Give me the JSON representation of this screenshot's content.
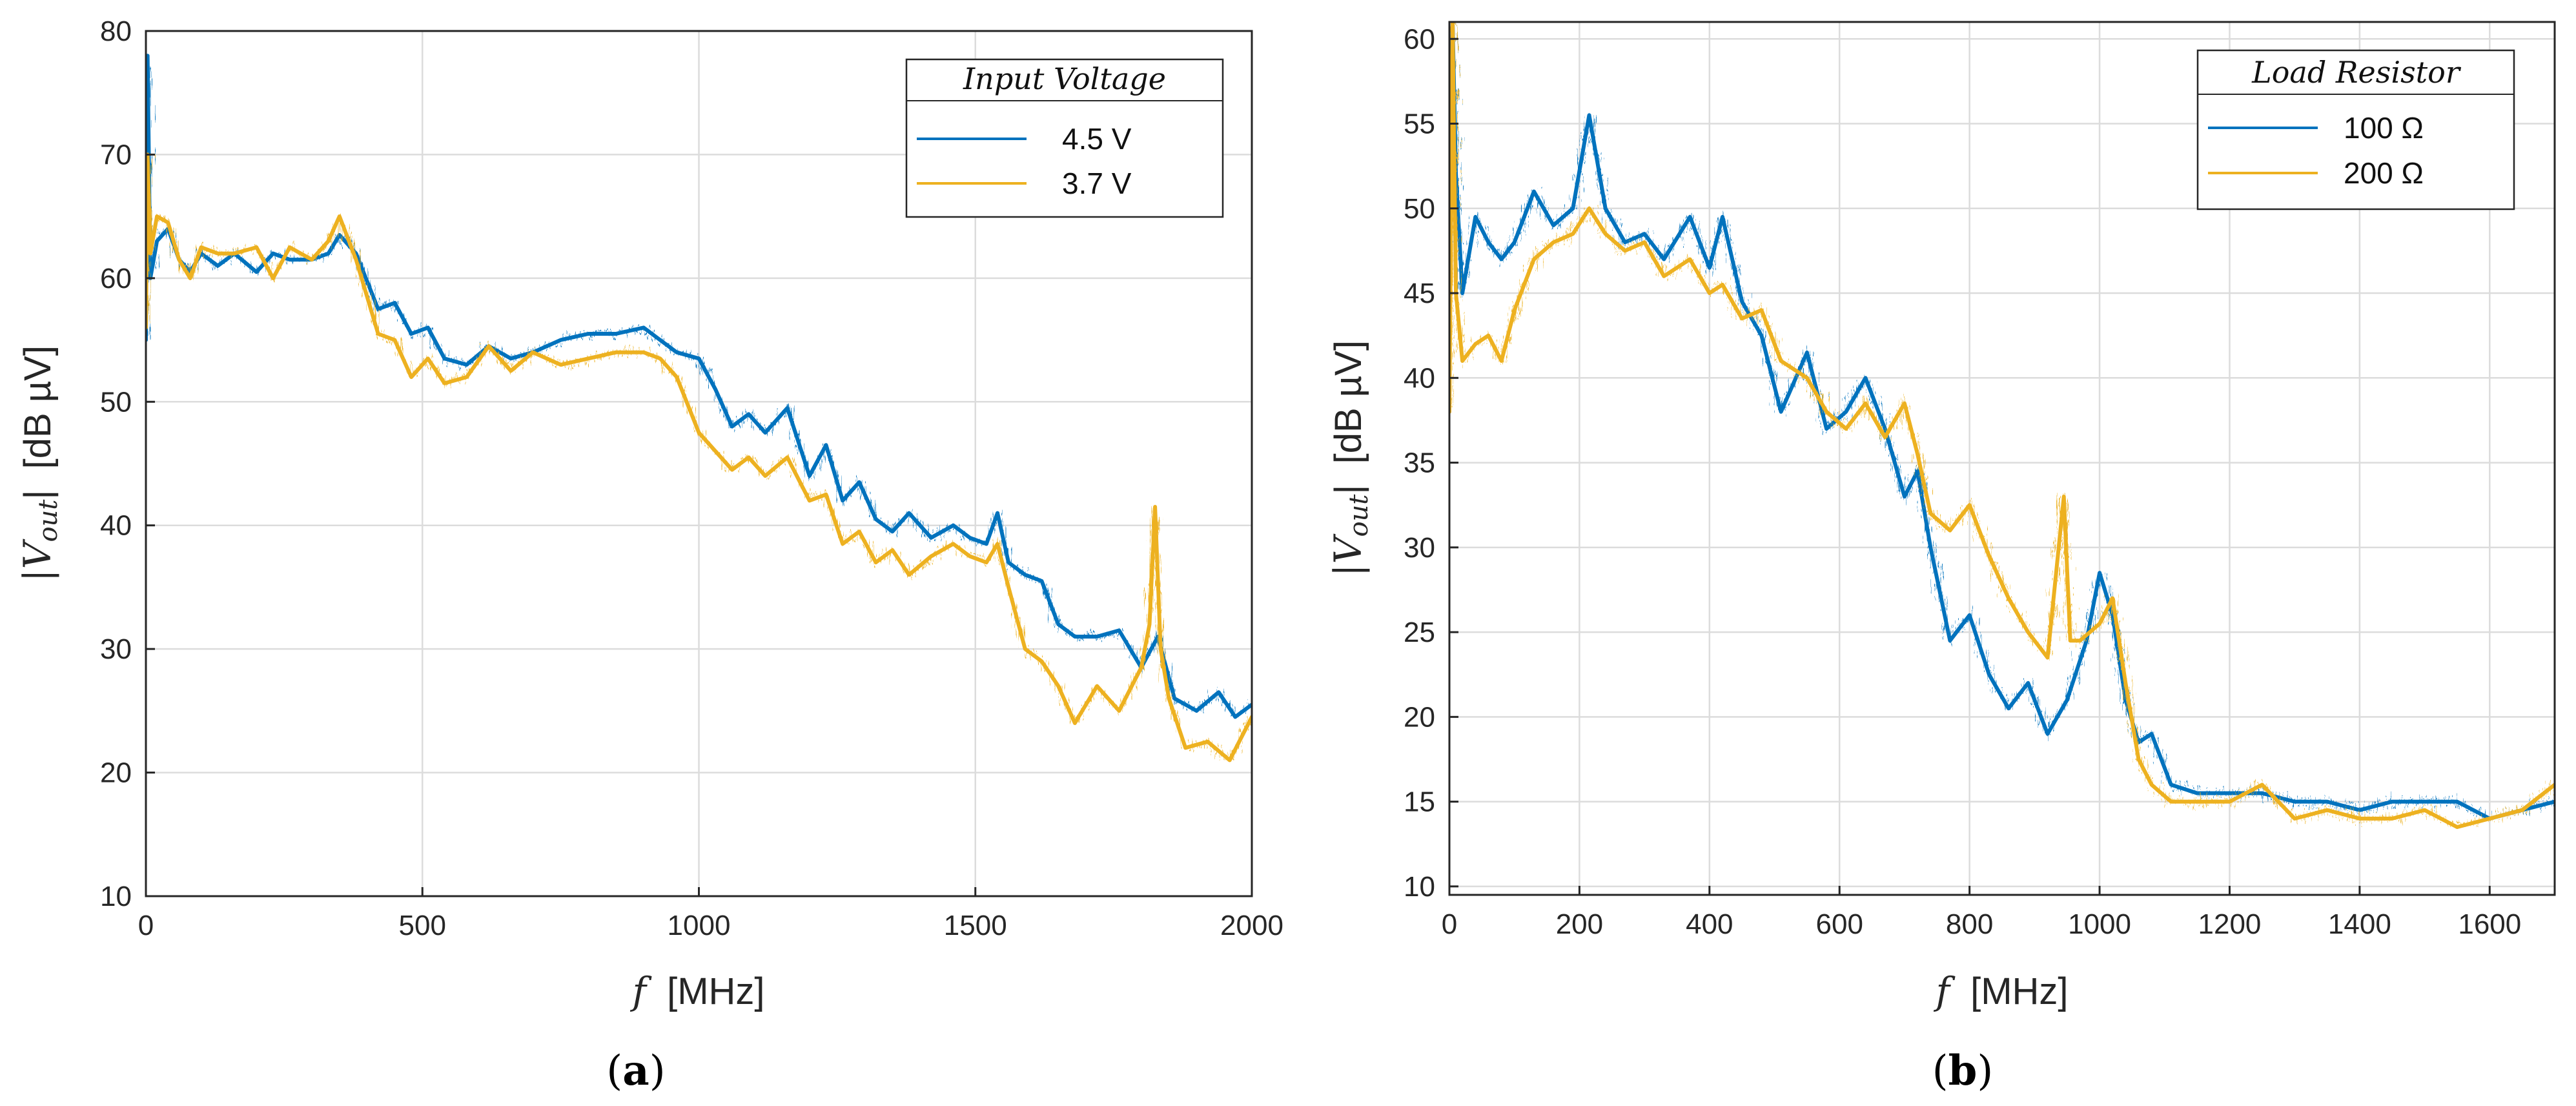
{
  "colors": {
    "blue": "#0072BD",
    "yellow": "#EDB120",
    "grid": "#dcdcdc",
    "axis": "#262626"
  },
  "chart_data": [
    {
      "type": "line",
      "caption_letter": "a",
      "title": "",
      "xlabel_var": "f",
      "xlabel_unit": "[MHz]",
      "ylabel_var": "|V",
      "ylabel_sub": "out",
      "ylabel_close": "|",
      "ylabel_unit": "[dB µV]",
      "xlim": [
        0,
        2000
      ],
      "ylim": [
        10,
        80
      ],
      "xticks": [
        0,
        500,
        1000,
        1500,
        2000
      ],
      "yticks": [
        10,
        20,
        30,
        40,
        50,
        60,
        70,
        80
      ],
      "grid": true,
      "legend_title": "Input Voltage",
      "legend_position": "top-right",
      "series": [
        {
          "name": "4.5 V",
          "color": "blue",
          "x": [
            0,
            3,
            8,
            20,
            40,
            60,
            80,
            100,
            130,
            160,
            200,
            230,
            260,
            300,
            330,
            350,
            380,
            420,
            450,
            480,
            510,
            540,
            580,
            620,
            660,
            700,
            750,
            800,
            850,
            900,
            930,
            960,
            1000,
            1030,
            1060,
            1090,
            1120,
            1160,
            1200,
            1230,
            1260,
            1290,
            1320,
            1350,
            1380,
            1420,
            1460,
            1490,
            1520,
            1540,
            1560,
            1590,
            1620,
            1650,
            1680,
            1720,
            1760,
            1800,
            1830,
            1860,
            1900,
            1940,
            1970,
            2000
          ],
          "values": [
            55,
            78,
            60,
            63,
            64,
            61.5,
            60.5,
            62,
            61,
            62,
            60.5,
            62,
            61.5,
            61.5,
            62,
            63.5,
            62,
            57.5,
            58,
            55.5,
            56,
            53.5,
            53,
            54.5,
            53.5,
            54,
            55,
            55.5,
            55.5,
            56,
            55,
            54,
            53.5,
            51,
            48,
            49,
            47.5,
            49.5,
            44,
            46.5,
            42,
            43.5,
            40.5,
            39.5,
            41,
            39,
            40,
            39,
            38.5,
            41,
            37,
            36,
            35.5,
            32,
            31,
            31,
            31.5,
            28.5,
            31,
            26,
            25,
            26.5,
            24.5,
            25.5
          ]
        },
        {
          "name": "3.7 V",
          "color": "yellow",
          "x": [
            0,
            3,
            8,
            20,
            40,
            60,
            80,
            100,
            130,
            160,
            200,
            230,
            260,
            300,
            330,
            350,
            380,
            420,
            450,
            480,
            510,
            540,
            580,
            620,
            660,
            700,
            750,
            800,
            850,
            900,
            930,
            960,
            1000,
            1030,
            1060,
            1090,
            1120,
            1160,
            1200,
            1230,
            1260,
            1290,
            1320,
            1350,
            1380,
            1420,
            1460,
            1490,
            1520,
            1540,
            1560,
            1590,
            1620,
            1650,
            1680,
            1720,
            1760,
            1800,
            1815,
            1825,
            1835,
            1850,
            1880,
            1920,
            1960,
            2000
          ],
          "values": [
            56,
            70,
            62,
            65,
            64.5,
            61.5,
            60,
            62.5,
            62,
            62,
            62.5,
            60,
            62.5,
            61.5,
            63,
            65,
            61.5,
            55.5,
            55,
            52,
            53.5,
            51.5,
            52,
            54.5,
            52.5,
            54,
            53,
            53.5,
            54,
            54,
            53.5,
            52,
            47.5,
            46,
            44.5,
            45.5,
            44,
            45.5,
            42,
            42.5,
            38.5,
            39.5,
            37,
            38,
            36,
            37.5,
            38.5,
            37.5,
            37,
            38.5,
            35,
            30,
            29,
            27,
            24,
            27,
            25,
            28.5,
            32,
            41.5,
            30,
            26,
            22,
            22.5,
            21,
            24.5
          ]
        }
      ]
    },
    {
      "type": "line",
      "caption_letter": "b",
      "title": "",
      "xlabel_var": "f",
      "xlabel_unit": "[MHz]",
      "ylabel_var": "|V",
      "ylabel_sub": "out",
      "ylabel_close": "|",
      "ylabel_unit": "[dB µV]",
      "xlim": [
        0,
        1700
      ],
      "ylim": [
        9.5,
        61
      ],
      "xticks": [
        0,
        200,
        400,
        600,
        800,
        1000,
        1200,
        1400,
        1600
      ],
      "yticks": [
        10,
        15,
        20,
        25,
        30,
        35,
        40,
        45,
        50,
        55,
        60
      ],
      "grid": true,
      "legend_title": "Load Resistor",
      "legend_position": "top-right",
      "series": [
        {
          "name": "100 Ω",
          "color": "blue",
          "x": [
            0,
            5,
            10,
            20,
            40,
            60,
            80,
            100,
            130,
            160,
            190,
            215,
            240,
            270,
            300,
            330,
            370,
            400,
            420,
            450,
            480,
            510,
            550,
            580,
            610,
            640,
            670,
            700,
            720,
            740,
            770,
            800,
            830,
            860,
            890,
            920,
            950,
            980,
            1000,
            1020,
            1040,
            1060,
            1080,
            1110,
            1150,
            1200,
            1250,
            1300,
            1350,
            1400,
            1450,
            1500,
            1550,
            1600,
            1650,
            1700
          ],
          "values": [
            48,
            61,
            52,
            45,
            49.5,
            48,
            47,
            48,
            51,
            49,
            50,
            55.5,
            50,
            48,
            48.5,
            47,
            49.5,
            46.5,
            49.5,
            44.5,
            42.5,
            38,
            41.5,
            37,
            38,
            40,
            37,
            33,
            34.5,
            30,
            24.5,
            26,
            22.5,
            20.5,
            22,
            19,
            21,
            24.5,
            28.5,
            26,
            21,
            18.5,
            19,
            16,
            15.5,
            15.5,
            15.5,
            15,
            15,
            14.5,
            15,
            15,
            15,
            14,
            14.5,
            15
          ]
        },
        {
          "name": "200 Ω",
          "color": "yellow",
          "x": [
            0,
            5,
            10,
            20,
            40,
            60,
            80,
            100,
            130,
            160,
            190,
            215,
            240,
            270,
            300,
            330,
            370,
            400,
            420,
            450,
            480,
            510,
            550,
            580,
            610,
            640,
            670,
            700,
            720,
            740,
            770,
            800,
            830,
            860,
            890,
            920,
            945,
            955,
            970,
            1000,
            1020,
            1040,
            1060,
            1080,
            1110,
            1150,
            1200,
            1250,
            1300,
            1350,
            1400,
            1450,
            1500,
            1550,
            1600,
            1650,
            1700
          ],
          "values": [
            38,
            61,
            45,
            41,
            42,
            42.5,
            41,
            44,
            47,
            48,
            48.5,
            50,
            48.5,
            47.5,
            48,
            46,
            47,
            45,
            45.5,
            43.5,
            44,
            41,
            40,
            38,
            37,
            38.5,
            36.5,
            38.5,
            35.5,
            32,
            31,
            32.5,
            29.5,
            27,
            25,
            23.5,
            33,
            24.5,
            24.5,
            25.5,
            27,
            22,
            17.5,
            16,
            15,
            15,
            15,
            16,
            14,
            14.5,
            14,
            14,
            14.5,
            13.5,
            14,
            14.5,
            16
          ]
        }
      ]
    }
  ]
}
